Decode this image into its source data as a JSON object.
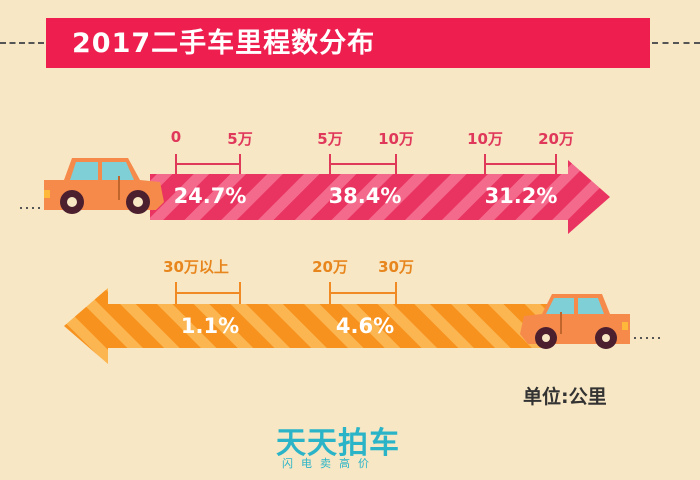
{
  "title": "2017二手车里程数分布",
  "unit_label": "单位:公里",
  "brand": {
    "name": "天天拍车",
    "slogan": "闪电卖高价"
  },
  "colors": {
    "background": "#f7e7c4",
    "banner": "#ee1f4f",
    "arrow_red": "#e93360",
    "arrow_red_stripe": "#f46a8c",
    "arrow_orange": "#f7921e",
    "arrow_orange_stripe": "#fbb652",
    "car_body": "#f58a4b",
    "brand": "#2bb4c8"
  },
  "chart_data": {
    "type": "bar",
    "title": "2017二手车里程数分布",
    "unit": "单位:公里",
    "series": [
      {
        "direction": "right",
        "segments": [
          {
            "from": "0",
            "to": "5万",
            "value": 24.7,
            "label": "24.7%"
          },
          {
            "from": "5万",
            "to": "10万",
            "value": 38.4,
            "label": "38.4%"
          },
          {
            "from": "10万",
            "to": "20万",
            "value": 31.2,
            "label": "31.2%"
          }
        ]
      },
      {
        "direction": "left",
        "segments": [
          {
            "from": "30万以上",
            "to": "",
            "value": 1.1,
            "label": "1.1%"
          },
          {
            "from": "20万",
            "to": "30万",
            "value": 4.6,
            "label": "4.6%"
          }
        ]
      }
    ]
  }
}
